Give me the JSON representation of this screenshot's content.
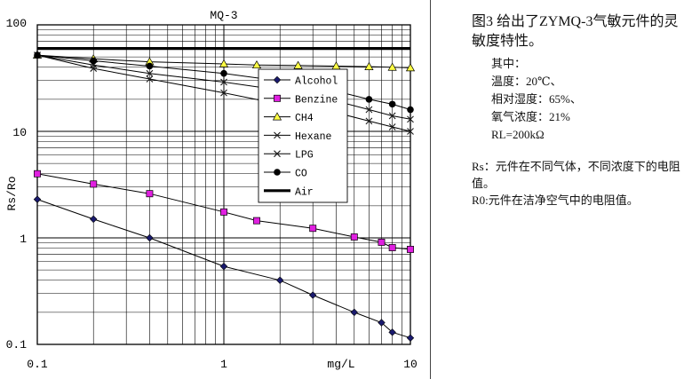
{
  "chart_data": {
    "type": "line",
    "title": "MQ-3",
    "xlabel": "mg/L",
    "ylabel": "Rs/Ro",
    "x_scale": "log",
    "y_scale": "log",
    "xlim": [
      0.1,
      10
    ],
    "ylim": [
      0.1,
      100
    ],
    "grid": true,
    "legend_position": "center-right",
    "x_tick_labels": [
      "0.1",
      "1",
      "10"
    ],
    "y_tick_labels": [
      "100",
      "10",
      "1",
      "0.1"
    ],
    "series": [
      {
        "name": "Alcohol",
        "marker": "diamond",
        "color": "#1a1a6e",
        "x": [
          0.1,
          0.2,
          0.4,
          1,
          2,
          3,
          5,
          7,
          8,
          10
        ],
        "y": [
          2.3,
          1.5,
          1.0,
          0.54,
          0.4,
          0.29,
          0.2,
          0.16,
          0.13,
          0.115
        ]
      },
      {
        "name": "Benzine",
        "marker": "square",
        "color": "#e020e0",
        "x": [
          0.1,
          0.2,
          0.4,
          1,
          1.5,
          3,
          5,
          7,
          8,
          10
        ],
        "y": [
          4.0,
          3.2,
          2.6,
          1.75,
          1.45,
          1.23,
          1.02,
          0.91,
          0.81,
          0.78
        ]
      },
      {
        "name": "CH4",
        "marker": "triangle",
        "color": "#ffff44",
        "x": [
          0.1,
          0.2,
          0.4,
          1,
          1.5,
          2.5,
          4,
          6,
          8,
          10
        ],
        "y": [
          52,
          48,
          45,
          43,
          42,
          41.5,
          41,
          40.5,
          40,
          39.5
        ]
      },
      {
        "name": "Hexane",
        "marker": "x",
        "color": "#1a1a1a",
        "x": [
          0.1,
          0.2,
          0.4,
          1,
          2,
          4,
          6,
          8,
          10
        ],
        "y": [
          52,
          39,
          31,
          23,
          18,
          15,
          12.5,
          11,
          10
        ]
      },
      {
        "name": "LPG",
        "marker": "x",
        "color": "#1a1a1a",
        "x": [
          0.1,
          0.2,
          0.4,
          1,
          3,
          6,
          8,
          10
        ],
        "y": [
          52,
          42,
          35,
          29,
          22,
          16,
          14,
          13
        ]
      },
      {
        "name": "CO",
        "marker": "circle",
        "color": "#000000",
        "x": [
          0.1,
          0.2,
          0.4,
          1,
          3,
          6,
          8,
          10
        ],
        "y": [
          52,
          46,
          41,
          35,
          27,
          20,
          18,
          16
        ]
      },
      {
        "name": "Air",
        "marker": "none",
        "color": "#000000",
        "line_width": "thick",
        "x": [
          0.1,
          10
        ],
        "y": [
          60,
          60
        ]
      }
    ]
  },
  "description": {
    "heading": "图3  给出了ZYMQ-3气敏元件的灵敏度特性。",
    "conditions": [
      "其中：",
      "温度：20℃、",
      "相对湿度：65%、",
      "氧气浓度：21%",
      "RL=200kΩ"
    ],
    "notes": [
      "Rs：元件在不同气体，不同浓度下的电阻值。",
      "R0:元件在洁净空气中的电阻值。"
    ]
  }
}
